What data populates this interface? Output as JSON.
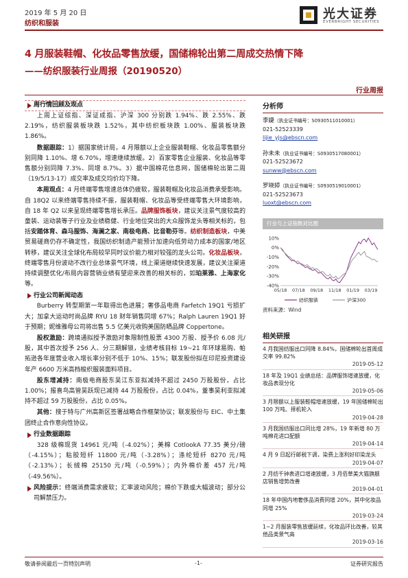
{
  "header": {
    "date": "2019 年 5 月 20 日",
    "sector": "纺织和服装",
    "logo_text": "光大证券",
    "logo_sub": "EVERBRIGHT SECURITIES"
  },
  "title": "4 月服装鞋帽、化妆品零售放缓，国储棉轮出第二周成交热情下降",
  "subtitle": "——纺织服装行业周报（20190520）",
  "report_type": "行业周报",
  "sections": {
    "s1_title": "周行情回顾及观点",
    "s1_p1": "上周上证综指、深证成指、沪深 300 分别跌 1.94%、跌 2.55%、跌 2.19%，纺织服装板块跌 1.52%，其中纺织板块跌 1.00%、服装板块跌 1.86%。",
    "s1_p2_lead": "数据跟踪：",
    "s1_p2": "1）据国家统计局，4 月限额以上企业服装鞋帽、化妆品零售额分别同降 1.10%、增 6.70%，增速继续放缓。2）百家零售企业服装、化妆品等零售额分别同降 7.3%、同增 8.7%。3）据中国棉花信息网，国储棉轮出第二周（19/5/13-17）成交率及成交均价均下降。",
    "s1_p3_lead": "本周观点：",
    "s1_p3_a": "4 月终端零售增速总体仍疲软，服装鞋帽及化妆品消费承受影响。自 18Q2 以来终端零售持续不振，服装鞋帽、化妆品等受终端零售大环境影响，自 18 年 Q2 以来呈现终端零售增长承压。",
    "s1_p3_hl1": "品牌服饰板块",
    "s1_p3_b": "，建议关注景气度较高的童装、运动装等子行业及业绩稳健、行业地位突出的大众服饰龙头等相关标的，包括",
    "s1_p3_names": "安踏体育、森马服饰、海澜之家、南极电商、比音勒芬",
    "s1_p3_c": "等。",
    "s1_p3_hl2": "纺织制造板块",
    "s1_p3_d": "，中美贸易磋商仍存不确定性，我国纺织制造产能预计加速向低劳动力成本的国家/地区转移，建议关注全球化布局较早同时议价能力相对较强的龙头公司。",
    "s1_p3_hl3": "化妆品板块",
    "s1_p3_e": "，终端零售月份波动不改行业总体景气环境，线上渠道继续快速发展，建议关注渠道持续调整优化/布局内容营销业绩有望迎来改善的相关标的，如",
    "s1_p3_names2": "珀莱雅、上海家化",
    "s1_p3_f": "等。",
    "s2_title": "行业公司新闻动态",
    "s2_p1": "Burberry 转型期第一年取得出色进展；奢侈品电商 Farfetch 19Q1 亏损扩大；加拿大运动时尚品牌 RYU 18 财年销售同增 67%；Ralph Lauren 19Q1 好于预期；妮维雅母公司将出售 5.5 亿美元收购美国防晒品牌 Coppertone。",
    "s2_p2_lead": "股权激励：",
    "s2_p2": "跨境通拟授予激励对象限制性股票 4300 万股、授予价 6.08 元/股，其中首次授予 256 人、分三期解锁，业绩考核目标 19~21 年环球易购、帕拓逊各年度营业收入增长率分别不低于 10%、15%；联发股份拟在印尼投资建设年产 6600 万米高档梭织服装面料项目。",
    "s2_p3_lead": "股东增减持：",
    "s2_p3": "南极电商股东吴江东亚拟减持不超过 2450 万股股份，占比 1.00%；报喜鸟高管吴跃现已减持 44 万股股份，占比 0.04%，董事吴利亚拟减持不超过 59 万股股份，占比 0.05%。",
    "s2_p4_lead": "其他：",
    "s2_p4": "搜于特与广州高新区签署战略合作框架协议；联发股份与 EIC、中土集团终止合作意向性协议。",
    "s3_title": "行业数据跟踪",
    "s3_p1": "328 级棉现货 14961 元/吨（-4.02%）；美棉 CotlookA 77.35 美分/磅（-4.15%）；粘胶短纤 11800 元/吨（-3.28%）；涤纶短纤 8270 元/吨（-2.13%）；长绒棉 25150 元/吨（-0.59%）；内外棉价差 457 元/吨（-49.56%）。",
    "s4_title": "风险提示：",
    "s4_text": "终端消费需求疲软；汇率波动风险；棉价下跌或大幅波动；部分公司解禁压力。"
  },
  "sidebar": {
    "analyst_title": "分析师",
    "analysts": [
      {
        "name": "李婕",
        "license": "（执业证书编号：S0930511010001）",
        "phone": "021-52523339",
        "email": "lijie_yjs@ebscn.com"
      },
      {
        "name": "孙未未",
        "license": "（执业证书编号：S0930517080001）",
        "phone": "021-52523672",
        "email": "sunww@ebscn.com"
      },
      {
        "name": "罗晓婷",
        "license": "（执业证书编号：S0930519010001）",
        "phone": "021-52523673",
        "email": "luoxt@ebscn.com"
      }
    ],
    "chart_title": "行业与上证指数对比图",
    "chart_source": "资料来源：Wind",
    "related_title": "相关研报",
    "related": [
      {
        "text": "4 月我国纺服出口同降 8.84%，国储棉轮出首周成交率 99.82%",
        "date": "2019-05-12"
      },
      {
        "text": "18 年及 19Q1 业绩总结：品牌服饰增速放缓，化妆品表现分化",
        "date": "2019-05-06"
      },
      {
        "text": "3 月限额以上服装鞋帽增速放缓，19 年国储棉轮出 100 万吨、择机轮入",
        "date": "2019-04-28"
      },
      {
        "text": "3 月我国纺服出口同比增 28%，19 年新增 80 万吨棉花进口配额",
        "date": "2019-04-14"
      },
      {
        "text": "4 月 9 日起行邮税下调，染费上涨利好印染龙头",
        "date": "2019-04-07"
      },
      {
        "text": "2 月纺千钟表进口增速放缓，3 月佰草美大猫旗舰店销售增势改善",
        "date": "2019-04-01"
      },
      {
        "text": "18 年中国内地奢侈品消费同增 20%，其中化妆品同增 25%",
        "date": "2019-03-24"
      },
      {
        "text": "1~2 月服装零售放缓延续，化妆品环比改善，较其他品类景气高",
        "date": "2019-03-16"
      }
    ]
  },
  "chart_data": {
    "type": "line",
    "title": "行业与上证指数对比图",
    "x_ticks": [
      "05/18",
      "07/18",
      "09/18",
      "11/18",
      "01/19",
      "03/19"
    ],
    "y_ticks": [
      "10%",
      "0%",
      "-10%",
      "-20%",
      "-30%",
      "-40%"
    ],
    "ylim": [
      -40,
      15
    ],
    "x_count": 52,
    "series": [
      {
        "name": "纺织服装",
        "color": "#8b3a8b",
        "values": [
          0,
          -2,
          -5,
          -8,
          -10,
          -12,
          -14,
          -13,
          -15,
          -17,
          -16,
          -18,
          -19,
          -21,
          -20,
          -22,
          -23,
          -24,
          -23,
          -25,
          -27,
          -26,
          -28,
          -30,
          -32,
          -33,
          -31,
          -34,
          -35,
          -33,
          -36,
          -37,
          -34,
          -31,
          -28,
          -23,
          -16,
          -10,
          -6,
          -2,
          2,
          6,
          4,
          8,
          9,
          6,
          10,
          7,
          3,
          5,
          1,
          -2
        ]
      },
      {
        "name": "沪深300",
        "color": "#999999",
        "values": [
          0,
          -3,
          -5,
          -7,
          -9,
          -10,
          -12,
          -14,
          -15,
          -14,
          -16,
          -17,
          -18,
          -19,
          -18,
          -20,
          -22,
          -21,
          -23,
          -22,
          -24,
          -26,
          -25,
          -27,
          -29,
          -30,
          -28,
          -31,
          -32,
          -30,
          -33,
          -32,
          -30,
          -28,
          -27,
          -24,
          -20,
          -15,
          -12,
          -10,
          -7,
          -5,
          -8,
          -6,
          -4,
          -9,
          -10,
          -11,
          -13,
          -12,
          -14,
          -15
        ]
      }
    ]
  },
  "footer": {
    "left": "敬请参阅最后一页特别声明",
    "page": "-1-",
    "right": "证券研究报告"
  }
}
